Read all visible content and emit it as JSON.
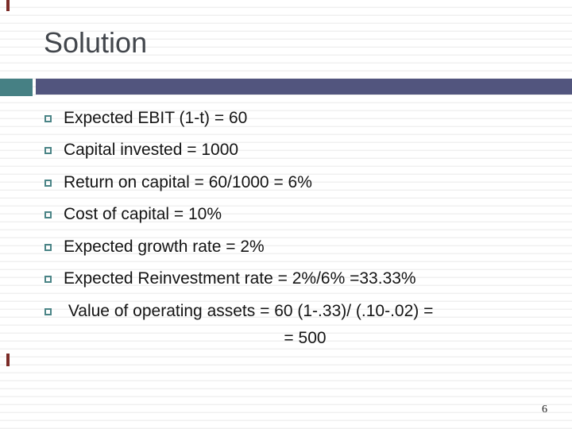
{
  "slide": {
    "title": "Solution",
    "bullets": [
      "Expected EBIT (1-t) = 60",
      "Capital invested = 1000",
      "Return on capital = 60/1000 = 6%",
      "Cost of capital = 10%",
      "Expected growth rate = 2%",
      "Expected Reinvestment rate = 2%/6% =33.33%",
      " Value of operating assets = 60 (1-.33)/ (.10-.02) ="
    ],
    "continuation_line": "= 500",
    "page_number": "6",
    "bullet_icon": "outlined-square",
    "colors": {
      "accent_teal": "#468084",
      "accent_slate": "#52557e",
      "accent_red": "#7b2b27",
      "title_text": "#42464c",
      "body_text": "#141414",
      "stripe": "#f0f0f0",
      "background": "#ffffff"
    }
  }
}
